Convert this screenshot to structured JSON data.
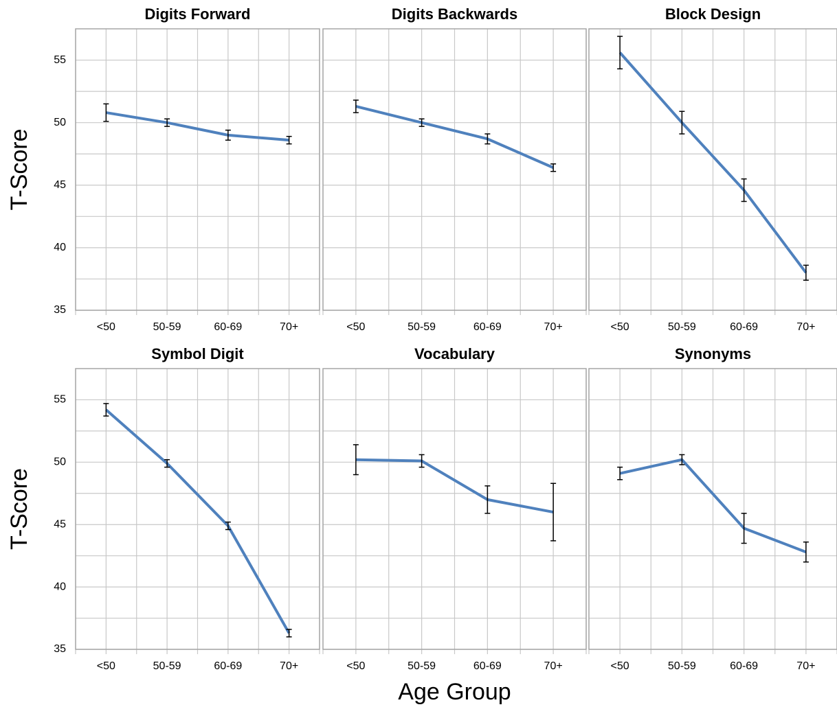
{
  "chart_data": [
    {
      "type": "line",
      "title": "Digits Forward",
      "ylabel": "T-Score",
      "categories": [
        "<50",
        "50-59",
        "60-69",
        "70+"
      ],
      "values": [
        50.8,
        50.0,
        49.0,
        48.6
      ],
      "errors": [
        0.7,
        0.3,
        0.4,
        0.3
      ],
      "color": "#4f81bd",
      "ylim": [
        35,
        57.5
      ],
      "yticks": [
        35,
        40,
        45,
        50,
        55
      ],
      "ytick_labels": true,
      "grid": true
    },
    {
      "type": "line",
      "title": "Digits Backwards",
      "categories": [
        "<50",
        "50-59",
        "60-69",
        "70+"
      ],
      "values": [
        51.3,
        50.0,
        48.7,
        46.4
      ],
      "errors": [
        0.5,
        0.3,
        0.4,
        0.3
      ],
      "color": "#4f81bd",
      "ylim": [
        35,
        57.5
      ],
      "yticks": [
        35,
        40,
        45,
        50,
        55
      ],
      "ytick_labels": false,
      "grid": true
    },
    {
      "type": "line",
      "title": "Block Design",
      "categories": [
        "<50",
        "50-59",
        "60-69",
        "70+"
      ],
      "values": [
        55.6,
        50.0,
        44.6,
        38.0
      ],
      "errors": [
        1.3,
        0.9,
        0.9,
        0.6
      ],
      "color": "#4f81bd",
      "ylim": [
        35,
        57.5
      ],
      "yticks": [
        35,
        40,
        45,
        50,
        55
      ],
      "ytick_labels": false,
      "grid": true
    },
    {
      "type": "line",
      "title": "Symbol Digit",
      "ylabel": "T-Score",
      "categories": [
        "<50",
        "50-59",
        "60-69",
        "70+"
      ],
      "values": [
        54.2,
        49.9,
        44.9,
        36.3
      ],
      "errors": [
        0.5,
        0.3,
        0.3,
        0.3
      ],
      "color": "#4f81bd",
      "ylim": [
        35,
        57.5
      ],
      "yticks": [
        35,
        40,
        45,
        50,
        55
      ],
      "ytick_labels": true,
      "grid": true
    },
    {
      "type": "line",
      "title": "Vocabulary",
      "xlabel": "Age Group",
      "categories": [
        "<50",
        "50-59",
        "60-69",
        "70+"
      ],
      "values": [
        50.2,
        50.1,
        47.0,
        46.0
      ],
      "errors": [
        1.2,
        0.5,
        1.1,
        2.3
      ],
      "color": "#4f81bd",
      "ylim": [
        35,
        57.5
      ],
      "yticks": [
        35,
        40,
        45,
        50,
        55
      ],
      "ytick_labels": false,
      "grid": true
    },
    {
      "type": "line",
      "title": "Synonyms",
      "categories": [
        "<50",
        "50-59",
        "60-69",
        "70+"
      ],
      "values": [
        49.1,
        50.2,
        44.7,
        42.8
      ],
      "errors": [
        0.5,
        0.4,
        1.2,
        0.8
      ],
      "color": "#4f81bd",
      "ylim": [
        35,
        57.5
      ],
      "yticks": [
        35,
        40,
        45,
        50,
        55
      ],
      "ytick_labels": false,
      "grid": true
    }
  ]
}
